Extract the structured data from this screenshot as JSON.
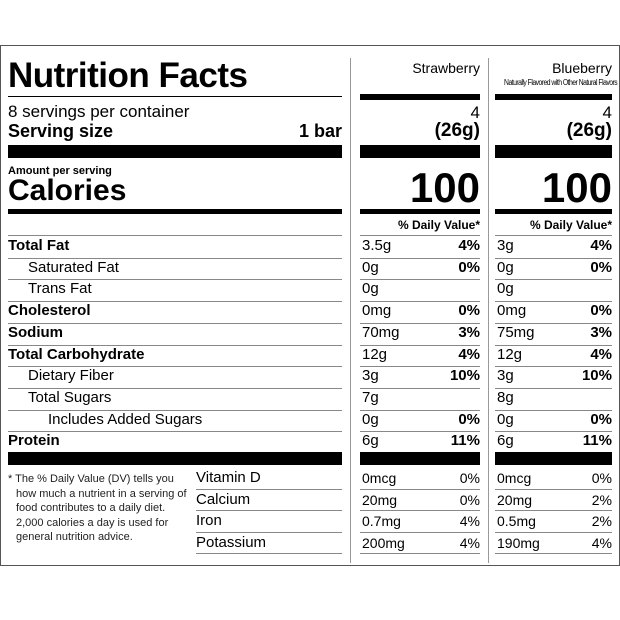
{
  "label": {
    "title": "Nutrition Facts",
    "servings": "8 servings per container",
    "serving_size_label": "Serving size",
    "serving_size_value": "1 bar",
    "amount_per_serving": "Amount per serving",
    "calories_label": "Calories",
    "nutrients": [
      {
        "name": "Total Fat",
        "bold": true,
        "indent": 0
      },
      {
        "name": "Saturated Fat",
        "bold": false,
        "indent": 1
      },
      {
        "name": "Trans Fat",
        "bold": false,
        "indent": 1
      },
      {
        "name": "Cholesterol",
        "bold": true,
        "indent": 0
      },
      {
        "name": "Sodium",
        "bold": true,
        "indent": 0
      },
      {
        "name": "Total Carbohydrate",
        "bold": true,
        "indent": 0
      },
      {
        "name": "Dietary Fiber",
        "bold": false,
        "indent": 1
      },
      {
        "name": "Total Sugars",
        "bold": false,
        "indent": 1
      },
      {
        "name": "Includes Added Sugars",
        "bold": false,
        "indent": 2
      },
      {
        "name": "Protein",
        "bold": true,
        "indent": 0
      }
    ],
    "vitamins": [
      "Vitamin D",
      "Calcium",
      "Iron",
      "Potassium"
    ],
    "footnote": "* The % Daily Value (DV) tells you how much a nutrient in a serving of food contributes to a daily diet. 2,000 calories a day is used for general nutrition advice."
  },
  "columns": [
    {
      "name": "Strawberry",
      "subtitle": "",
      "servings": "4",
      "serving_size": "(26g)",
      "calories": "100",
      "dv_header": "% Daily Value*",
      "nutrients": [
        [
          "3.5g",
          "4%"
        ],
        [
          "0g",
          "0%"
        ],
        [
          "0g",
          ""
        ],
        [
          "0mg",
          "0%"
        ],
        [
          "70mg",
          "3%"
        ],
        [
          "12g",
          "4%"
        ],
        [
          "3g",
          "10%"
        ],
        [
          "7g",
          ""
        ],
        [
          "0g",
          "0%"
        ],
        [
          "6g",
          "11%"
        ]
      ],
      "vitamins": [
        [
          "0mcg",
          "0%"
        ],
        [
          "20mg",
          "0%"
        ],
        [
          "0.7mg",
          "4%"
        ],
        [
          "200mg",
          "4%"
        ]
      ]
    },
    {
      "name": "Blueberry",
      "subtitle": "Naturally Flavored with Other Natural Flavors",
      "servings": "4",
      "serving_size": "(26g)",
      "calories": "100",
      "dv_header": "% Daily Value*",
      "nutrients": [
        [
          "3g",
          "4%"
        ],
        [
          "0g",
          "0%"
        ],
        [
          "0g",
          ""
        ],
        [
          "0mg",
          "0%"
        ],
        [
          "75mg",
          "3%"
        ],
        [
          "12g",
          "4%"
        ],
        [
          "3g",
          "10%"
        ],
        [
          "8g",
          ""
        ],
        [
          "0g",
          "0%"
        ],
        [
          "6g",
          "11%"
        ]
      ],
      "vitamins": [
        [
          "0mcg",
          "0%"
        ],
        [
          "20mg",
          "2%"
        ],
        [
          "0.5mg",
          "2%"
        ],
        [
          "190mg",
          "4%"
        ]
      ]
    }
  ]
}
